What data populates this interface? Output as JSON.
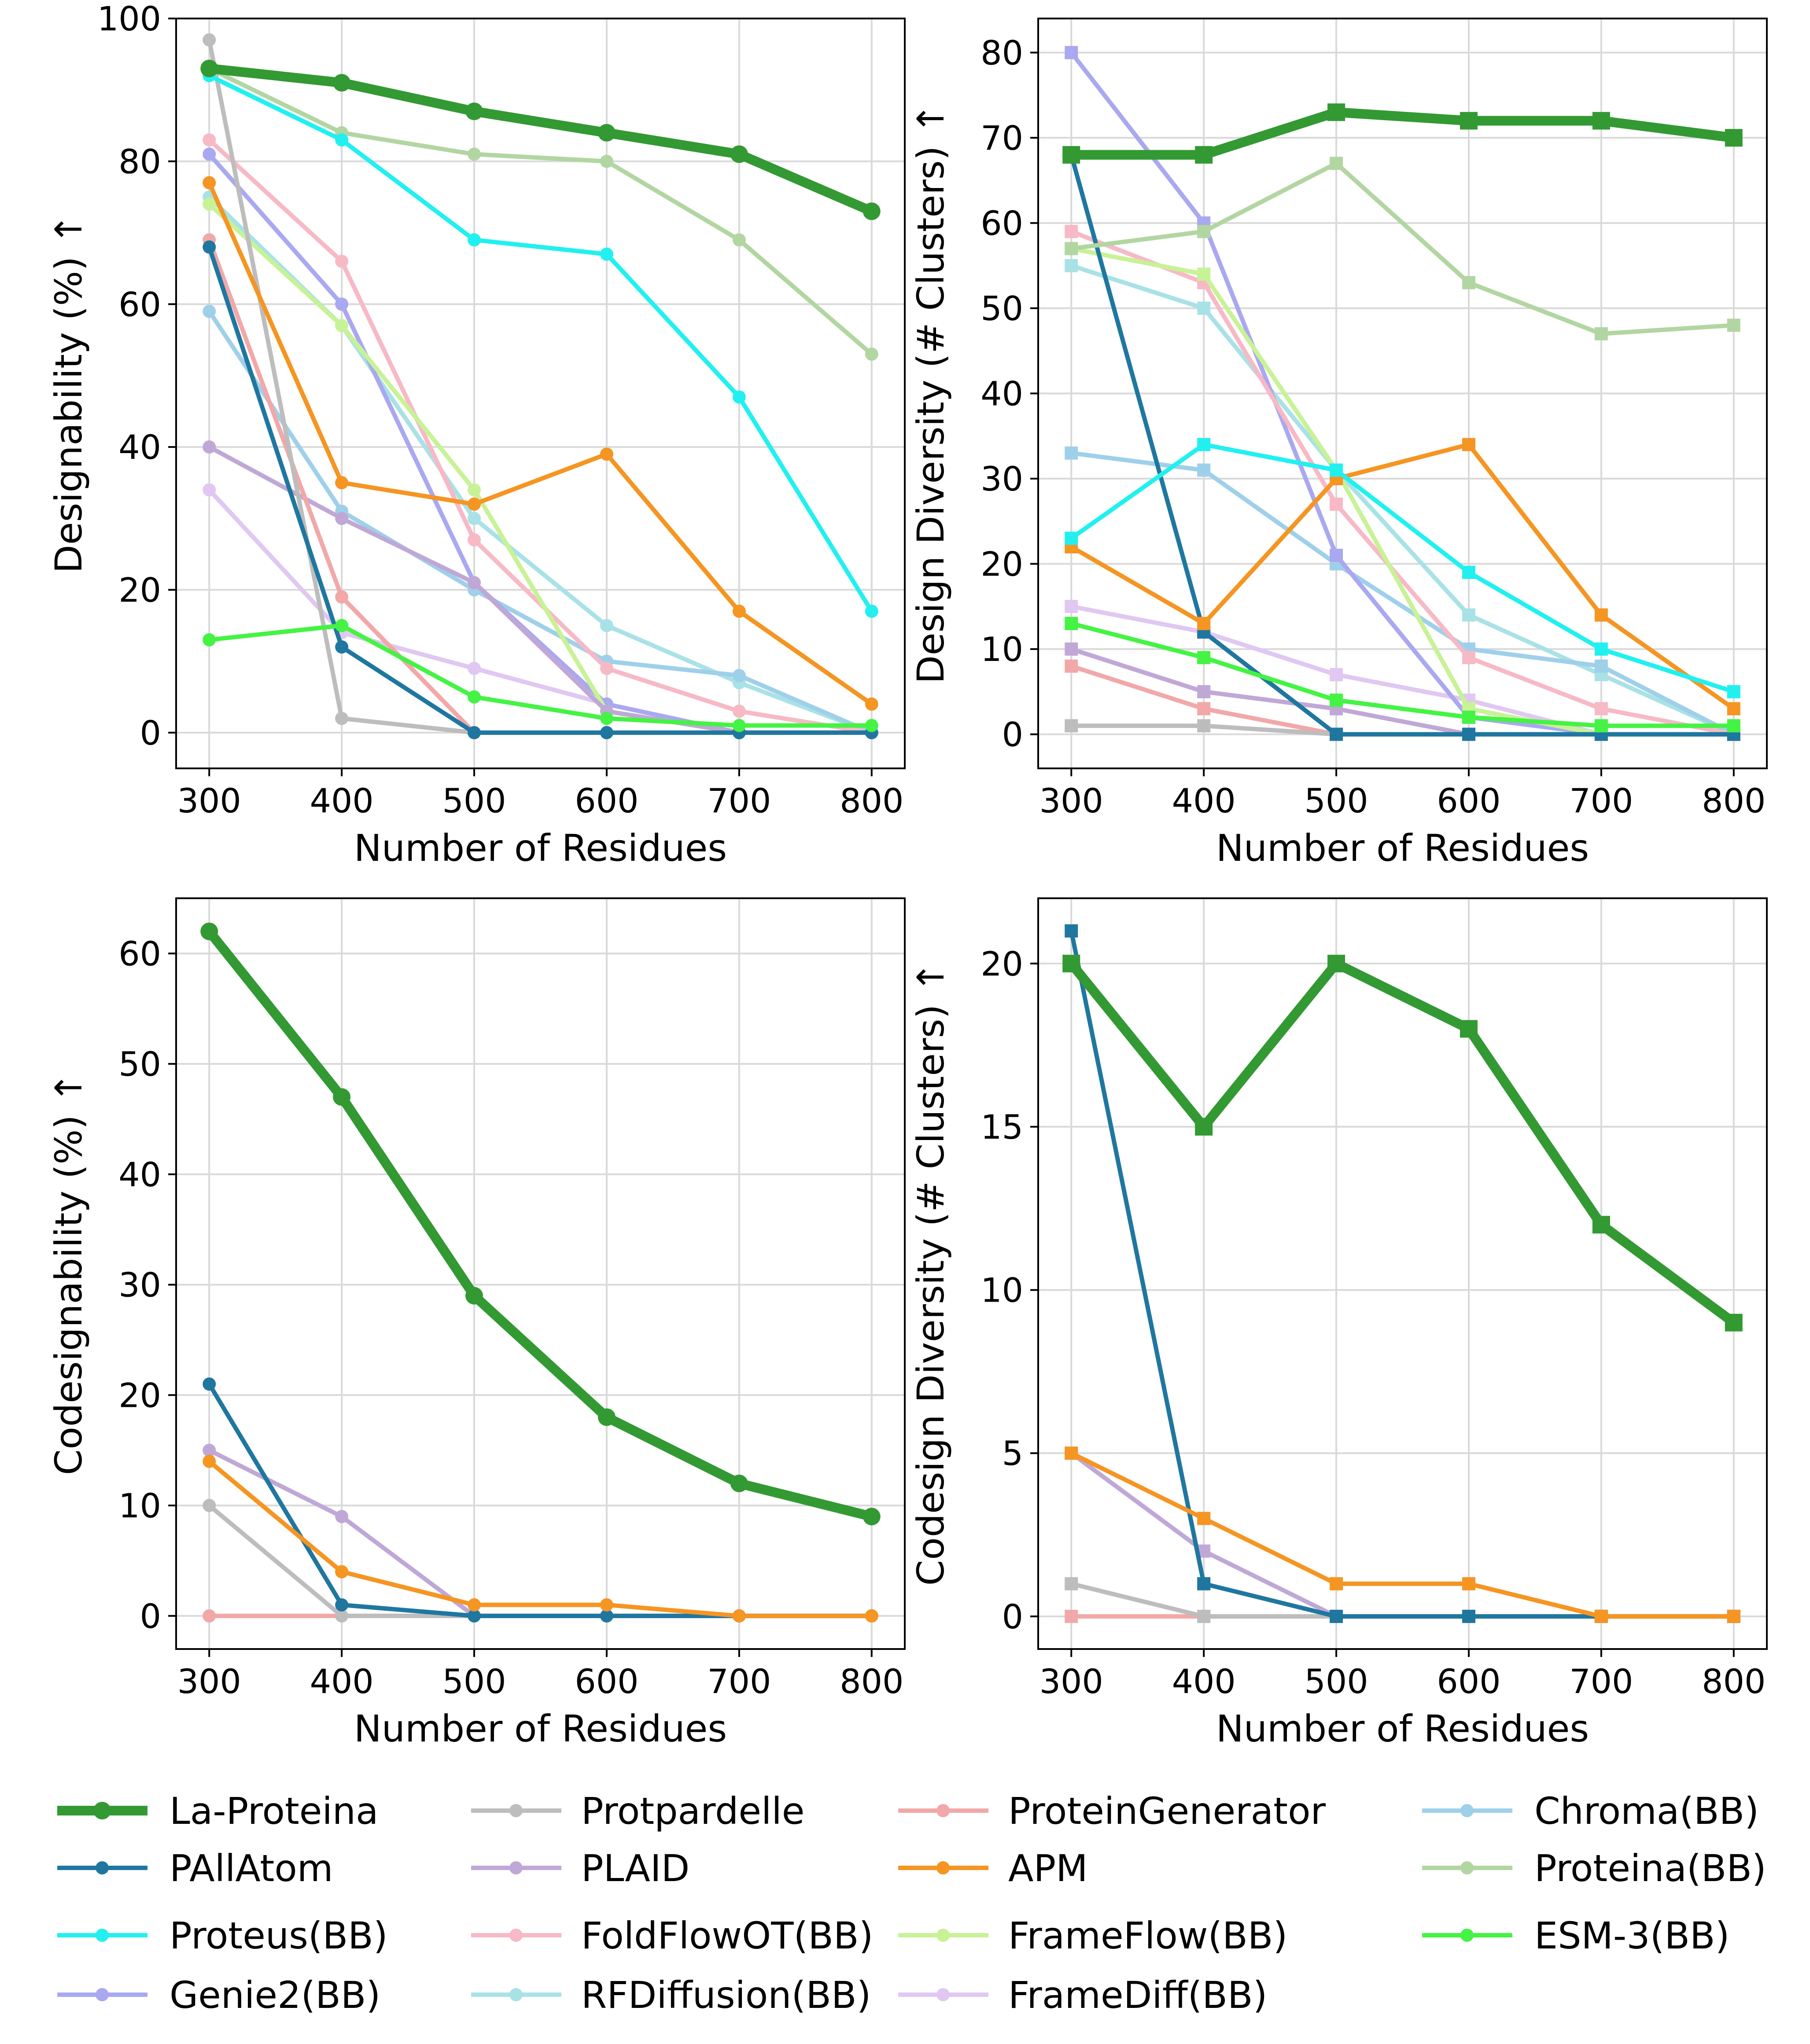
{
  "legend": [
    {
      "key": "la",
      "label": "La-Proteina",
      "color": "#339933",
      "bold": true
    },
    {
      "key": "palla",
      "label": "PAllAtom",
      "color": "#1f77a0"
    },
    {
      "key": "proteus",
      "label": "Proteus(BB)",
      "color": "#22f0f0"
    },
    {
      "key": "genie2",
      "label": "Genie2(BB)",
      "color": "#a9a8f0"
    },
    {
      "key": "protpar",
      "label": "Protpardelle",
      "color": "#bdbdbd"
    },
    {
      "key": "plaid",
      "label": "PLAID",
      "color": "#c0a8d6"
    },
    {
      "key": "foldflow",
      "label": "FoldFlowOT(BB)",
      "color": "#f7b9c6"
    },
    {
      "key": "rfdiff",
      "label": "RFDiffusion(BB)",
      "color": "#a9e2e6"
    },
    {
      "key": "protgen",
      "label": "ProteinGenerator",
      "color": "#f2a8a8"
    },
    {
      "key": "apm",
      "label": "APM",
      "color": "#f59522"
    },
    {
      "key": "frameflow",
      "label": "FrameFlow(BB)",
      "color": "#c8f296"
    },
    {
      "key": "framediff",
      "label": "FrameDiff(BB)",
      "color": "#e0c8f2"
    },
    {
      "key": "chroma",
      "label": "Chroma(BB)",
      "color": "#9fd0ea"
    },
    {
      "key": "proteina",
      "label": "Proteina(BB)",
      "color": "#b2d6a2"
    },
    {
      "key": "esm3",
      "label": "ESM-3(BB)",
      "color": "#44f344"
    }
  ],
  "chart_data": [
    {
      "type": "line",
      "marker": "circle",
      "xlabel": "Number of Residues",
      "ylabel": "Designability (%) ↑",
      "x": [
        300,
        400,
        500,
        600,
        700,
        800
      ],
      "xticks": [
        300,
        400,
        500,
        600,
        700,
        800
      ],
      "ylim": [
        -5,
        100
      ],
      "yticks": [
        0,
        20,
        40,
        60,
        80,
        100
      ],
      "grid": true,
      "series": [
        {
          "key": "framediff",
          "values": [
            34,
            14,
            9,
            4,
            0,
            0
          ]
        },
        {
          "key": "rfdiff",
          "values": [
            75,
            57,
            30,
            15,
            7,
            0
          ]
        },
        {
          "key": "chroma",
          "values": [
            59,
            31,
            20,
            10,
            8,
            0
          ]
        },
        {
          "key": "genie2",
          "values": [
            81,
            60,
            21,
            4,
            0,
            0
          ]
        },
        {
          "key": "foldflow",
          "values": [
            83,
            66,
            27,
            9,
            3,
            0
          ]
        },
        {
          "key": "frameflow",
          "values": [
            74,
            57,
            34,
            3,
            0,
            0
          ]
        },
        {
          "key": "plaid",
          "values": [
            40,
            30,
            21,
            3,
            0,
            0
          ]
        },
        {
          "key": "protgen",
          "values": [
            69,
            19,
            0,
            0,
            0,
            0
          ]
        },
        {
          "key": "protpar",
          "values": [
            97,
            2,
            0,
            0,
            0,
            0
          ]
        },
        {
          "key": "palla",
          "values": [
            68,
            12,
            0,
            0,
            0,
            0
          ]
        },
        {
          "key": "esm3",
          "values": [
            13,
            15,
            5,
            2,
            1,
            1
          ]
        },
        {
          "key": "apm",
          "values": [
            77,
            35,
            32,
            39,
            17,
            4
          ]
        },
        {
          "key": "proteina",
          "values": [
            93,
            84,
            81,
            80,
            69,
            53
          ]
        },
        {
          "key": "proteus",
          "values": [
            92,
            83,
            69,
            67,
            47,
            17
          ]
        },
        {
          "key": "la",
          "values": [
            93,
            91,
            87,
            84,
            81,
            73
          ]
        }
      ]
    },
    {
      "type": "line",
      "marker": "square",
      "xlabel": "Number of Residues",
      "ylabel": "Design Diversity (# Clusters) ↑",
      "x": [
        300,
        400,
        500,
        600,
        700,
        800
      ],
      "xticks": [
        300,
        400,
        500,
        600,
        700,
        800
      ],
      "ylim": [
        -4,
        84
      ],
      "yticks": [
        0,
        10,
        20,
        30,
        40,
        50,
        60,
        70,
        80
      ],
      "grid": true,
      "series": [
        {
          "key": "framediff",
          "values": [
            15,
            12,
            7,
            4,
            0,
            0
          ]
        },
        {
          "key": "rfdiff",
          "values": [
            55,
            50,
            31,
            14,
            7,
            0
          ]
        },
        {
          "key": "chroma",
          "values": [
            33,
            31,
            20,
            10,
            8,
            0
          ]
        },
        {
          "key": "genie2",
          "values": [
            80,
            60,
            21,
            2,
            0,
            0
          ]
        },
        {
          "key": "foldflow",
          "values": [
            59,
            53,
            27,
            9,
            3,
            0
          ]
        },
        {
          "key": "frameflow",
          "values": [
            57,
            54,
            31,
            3,
            0,
            0
          ]
        },
        {
          "key": "plaid",
          "values": [
            10,
            5,
            3,
            0,
            0,
            0
          ]
        },
        {
          "key": "protgen",
          "values": [
            8,
            3,
            0,
            0,
            0,
            0
          ]
        },
        {
          "key": "protpar",
          "values": [
            1,
            1,
            0,
            0,
            0,
            0
          ]
        },
        {
          "key": "palla",
          "values": [
            68,
            12,
            0,
            0,
            0,
            0
          ]
        },
        {
          "key": "esm3",
          "values": [
            13,
            9,
            4,
            2,
            1,
            1
          ]
        },
        {
          "key": "apm",
          "values": [
            22,
            13,
            30,
            34,
            14,
            3
          ]
        },
        {
          "key": "proteus",
          "values": [
            23,
            34,
            31,
            19,
            10,
            5
          ]
        },
        {
          "key": "proteina",
          "values": [
            57,
            59,
            67,
            53,
            47,
            48
          ]
        },
        {
          "key": "la",
          "values": [
            68,
            68,
            73,
            72,
            72,
            70
          ]
        }
      ]
    },
    {
      "type": "line",
      "marker": "circle",
      "xlabel": "Number of Residues",
      "ylabel": "Codesignability (%) ↑",
      "x": [
        300,
        400,
        500,
        600,
        700,
        800
      ],
      "xticks": [
        300,
        400,
        500,
        600,
        700,
        800
      ],
      "ylim": [
        -3,
        65
      ],
      "yticks": [
        0,
        10,
        20,
        30,
        40,
        50,
        60
      ],
      "grid": true,
      "series": [
        {
          "key": "protgen",
          "values": [
            0,
            0,
            0,
            0,
            0,
            0
          ]
        },
        {
          "key": "protpar",
          "values": [
            10,
            0,
            0,
            0,
            0,
            0
          ]
        },
        {
          "key": "plaid",
          "values": [
            15,
            9,
            0,
            0,
            0,
            0
          ]
        },
        {
          "key": "palla",
          "values": [
            21,
            1,
            0,
            0,
            0,
            0
          ]
        },
        {
          "key": "apm",
          "values": [
            14,
            4,
            1,
            1,
            0,
            0
          ]
        },
        {
          "key": "la",
          "values": [
            62,
            47,
            29,
            18,
            12,
            9
          ]
        }
      ]
    },
    {
      "type": "line",
      "marker": "square",
      "xlabel": "Number of Residues",
      "ylabel": "Codesign Diversity (# Clusters) ↑",
      "x": [
        300,
        400,
        500,
        600,
        700,
        800
      ],
      "xticks": [
        300,
        400,
        500,
        600,
        700,
        800
      ],
      "ylim": [
        -1,
        22
      ],
      "yticks": [
        0,
        5,
        10,
        15,
        20
      ],
      "grid": true,
      "series": [
        {
          "key": "protgen",
          "values": [
            0,
            0,
            0,
            0,
            0,
            0
          ]
        },
        {
          "key": "protpar",
          "values": [
            1,
            0,
            0,
            0,
            0,
            0
          ]
        },
        {
          "key": "plaid",
          "values": [
            5,
            2,
            0,
            0,
            0,
            0
          ]
        },
        {
          "key": "palla",
          "values": [
            21,
            1,
            0,
            0,
            0,
            0
          ]
        },
        {
          "key": "apm",
          "values": [
            5,
            3,
            1,
            1,
            0,
            0
          ]
        },
        {
          "key": "la",
          "values": [
            20,
            15,
            20,
            18,
            12,
            9
          ]
        }
      ]
    }
  ]
}
